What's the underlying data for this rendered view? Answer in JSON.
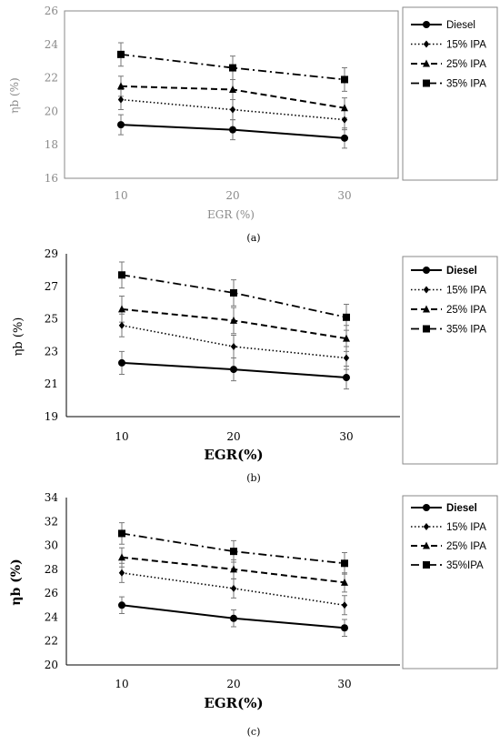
{
  "colors": {
    "axis_gray": "#8a8a8a",
    "axis_black": "#000000",
    "series": "#000000",
    "error_bar": "#777777"
  },
  "chart_data": [
    {
      "type": "line",
      "caption": "(a)",
      "xlabel": "EGR (%)",
      "ylabel": "ηb (%)",
      "x": [
        10,
        20,
        30
      ],
      "ylim": [
        16,
        26
      ],
      "yticks": [
        16,
        18,
        20,
        22,
        24,
        26
      ],
      "grid": false,
      "legend": "right",
      "series": [
        {
          "name": "Diesel",
          "values": [
            19.2,
            18.9,
            18.4
          ],
          "errors": [
            0.6,
            0.6,
            0.6
          ],
          "marker": "circle",
          "line": "solid"
        },
        {
          "name": "15% IPA",
          "values": [
            20.7,
            20.1,
            19.5
          ],
          "errors": [
            0.6,
            0.6,
            0.6
          ],
          "marker": "diamond",
          "line": "dotted"
        },
        {
          "name": "25% IPA",
          "values": [
            21.5,
            21.3,
            20.2
          ],
          "errors": [
            0.6,
            0.6,
            0.6
          ],
          "marker": "triangle",
          "line": "dashed"
        },
        {
          "name": "35% IPA",
          "values": [
            23.4,
            22.6,
            21.9
          ],
          "errors": [
            0.7,
            0.7,
            0.7
          ],
          "marker": "square",
          "line": "dashdot"
        }
      ]
    },
    {
      "type": "line",
      "caption": "(b)",
      "xlabel": "EGR(%)",
      "ylabel": "ηb (%)",
      "x": [
        10,
        20,
        30
      ],
      "ylim": [
        19,
        29
      ],
      "yticks": [
        19,
        21,
        23,
        25,
        27,
        29
      ],
      "grid": false,
      "legend": "right",
      "series": [
        {
          "name": "Diesel",
          "values": [
            22.3,
            21.9,
            21.4
          ],
          "errors": [
            0.7,
            0.7,
            0.7
          ],
          "marker": "circle",
          "line": "solid"
        },
        {
          "name": "15% IPA",
          "values": [
            24.6,
            23.3,
            22.6
          ],
          "errors": [
            0.7,
            0.7,
            0.7
          ],
          "marker": "diamond",
          "line": "dotted"
        },
        {
          "name": "25% IPA",
          "values": [
            25.6,
            24.9,
            23.8
          ],
          "errors": [
            0.8,
            0.8,
            0.8
          ],
          "marker": "triangle",
          "line": "dashed"
        },
        {
          "name": "35% IPA",
          "values": [
            27.7,
            26.6,
            25.1
          ],
          "errors": [
            0.8,
            0.8,
            0.8
          ],
          "marker": "square",
          "line": "dashdot"
        }
      ]
    },
    {
      "type": "line",
      "caption": "(c)",
      "xlabel": "EGR(%)",
      "ylabel": "ηb (%)",
      "x": [
        10,
        20,
        30
      ],
      "ylim": [
        20,
        34
      ],
      "yticks": [
        20,
        22,
        24,
        26,
        28,
        30,
        32,
        34
      ],
      "grid": false,
      "legend": "right",
      "series": [
        {
          "name": "Diesel",
          "values": [
            25.0,
            23.9,
            23.1
          ],
          "errors": [
            0.7,
            0.7,
            0.7
          ],
          "marker": "circle",
          "line": "solid"
        },
        {
          "name": "15% IPA",
          "values": [
            27.7,
            26.4,
            25.0
          ],
          "errors": [
            0.8,
            0.8,
            0.8
          ],
          "marker": "diamond",
          "line": "dotted"
        },
        {
          "name": "25% IPA",
          "values": [
            29.0,
            28.0,
            26.9
          ],
          "errors": [
            0.8,
            0.8,
            0.8
          ],
          "marker": "triangle",
          "line": "dashed"
        },
        {
          "name": "35%IPA",
          "values": [
            31.0,
            29.5,
            28.5
          ],
          "errors": [
            0.9,
            0.9,
            0.9
          ],
          "marker": "square",
          "line": "dashdot"
        }
      ]
    }
  ]
}
